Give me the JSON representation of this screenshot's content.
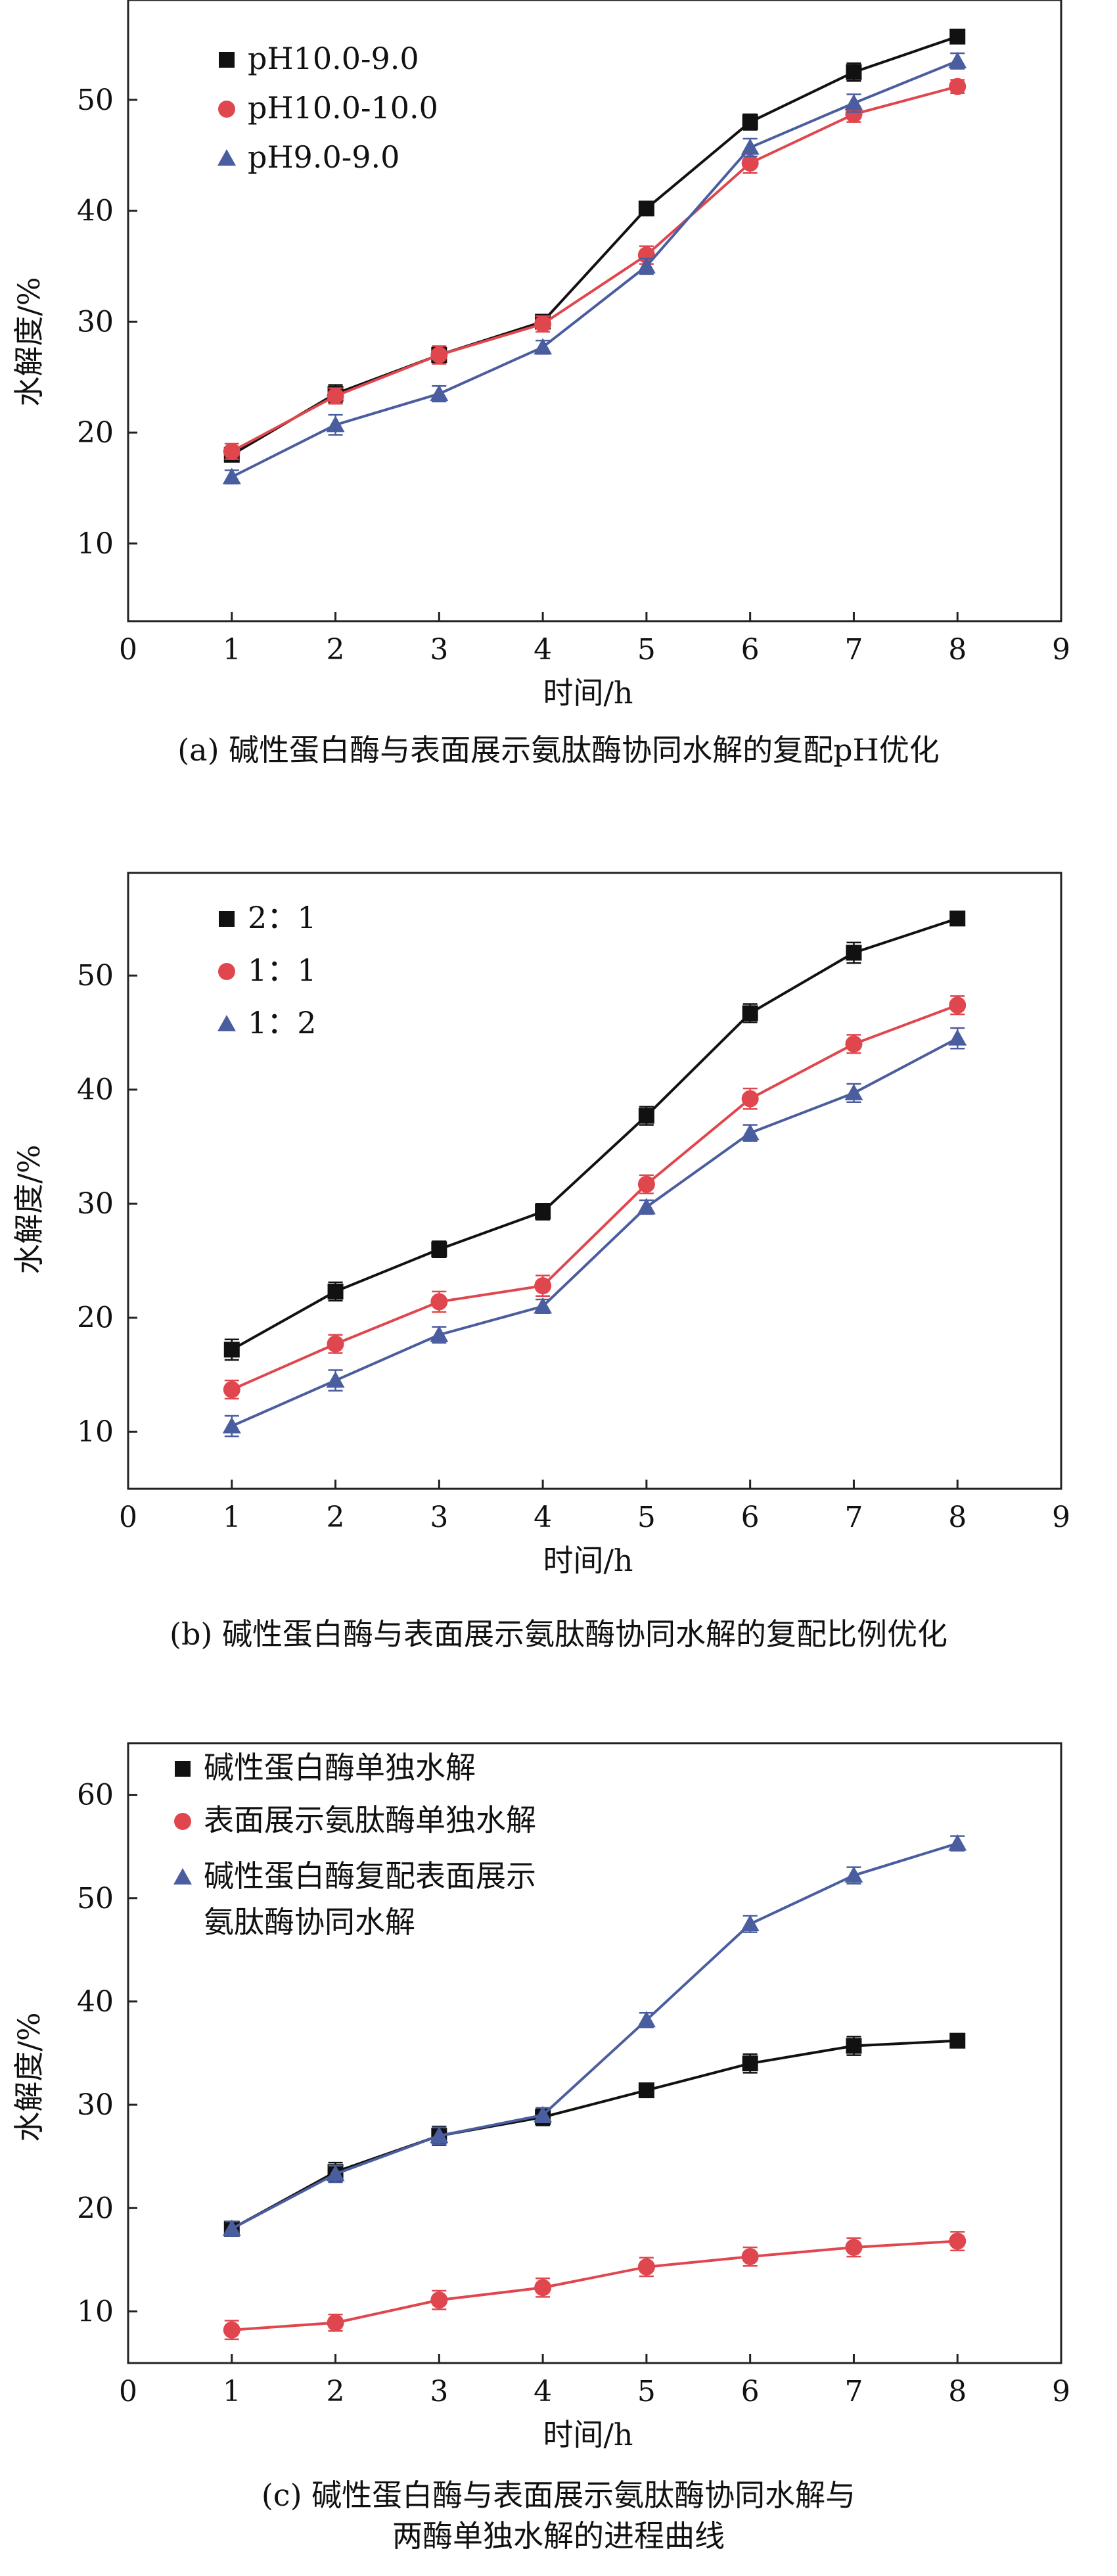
{
  "figure": {
    "colors": {
      "black": "#111111",
      "red": "#e0464d",
      "blue": "#4a5d9e",
      "axis": "#222222"
    }
  },
  "chart_data": [
    {
      "type": "line",
      "xlabel": "时间/h",
      "ylabel": "水解度/%",
      "xlim": [
        0,
        9
      ],
      "ylim": [
        3,
        59
      ],
      "xticks": [
        0,
        1,
        2,
        3,
        4,
        5,
        6,
        7,
        8,
        9
      ],
      "yticks": [
        10,
        20,
        30,
        40,
        50
      ],
      "grid": false,
      "legend_position": "top-left",
      "caption": "(a) 碱性蛋白酶与表面展示氨肽酶协同水解的复配pH优化",
      "x": [
        1,
        2,
        3,
        4,
        5,
        6,
        7,
        8
      ],
      "series": [
        {
          "name": "pH10.0-9.0",
          "marker": "square",
          "color": "#111111",
          "values": [
            18.0,
            23.5,
            27.0,
            30.0,
            40.2,
            48.0,
            52.5,
            55.7
          ],
          "errors": [
            0.6,
            0.8,
            0.7,
            0.6,
            0.6,
            0.7,
            0.8,
            0.6
          ]
        },
        {
          "name": "pH10.0-10.0",
          "marker": "circle",
          "color": "#e0464d",
          "values": [
            18.3,
            23.3,
            27.0,
            29.8,
            36.0,
            44.3,
            48.7,
            51.2
          ],
          "errors": [
            0.7,
            0.7,
            0.8,
            0.7,
            0.8,
            0.9,
            0.7,
            0.6
          ]
        },
        {
          "name": "pH9.0-9.0",
          "marker": "triangle",
          "color": "#4a5d9e",
          "values": [
            16.0,
            20.7,
            23.5,
            27.7,
            35.0,
            45.7,
            49.7,
            53.5
          ],
          "errors": [
            0.6,
            0.9,
            0.7,
            0.6,
            0.7,
            0.8,
            0.8,
            0.7
          ]
        }
      ]
    },
    {
      "type": "line",
      "xlabel": "时间/h",
      "ylabel": "水解度/%",
      "xlim": [
        0,
        9
      ],
      "ylim": [
        5,
        59
      ],
      "xticks": [
        0,
        1,
        2,
        3,
        4,
        5,
        6,
        7,
        8,
        9
      ],
      "yticks": [
        10,
        20,
        30,
        40,
        50
      ],
      "grid": false,
      "legend_position": "top-left",
      "caption": "(b) 碱性蛋白酶与表面展示氨肽酶协同水解的复配比例优化",
      "x": [
        1,
        2,
        3,
        4,
        5,
        6,
        7,
        8
      ],
      "series": [
        {
          "name": "2：1",
          "marker": "square",
          "color": "#111111",
          "values": [
            17.2,
            22.3,
            26.0,
            29.3,
            37.7,
            46.7,
            52.0,
            55.0
          ],
          "errors": [
            0.9,
            0.8,
            0.7,
            0.7,
            0.8,
            0.8,
            0.9,
            0.5
          ]
        },
        {
          "name": "1：1",
          "marker": "circle",
          "color": "#e0464d",
          "values": [
            13.7,
            17.7,
            21.4,
            22.8,
            31.7,
            39.2,
            44.0,
            47.4
          ],
          "errors": [
            0.8,
            0.8,
            0.9,
            0.9,
            0.8,
            0.9,
            0.8,
            0.8
          ]
        },
        {
          "name": "1：2",
          "marker": "triangle",
          "color": "#4a5d9e",
          "values": [
            10.5,
            14.5,
            18.5,
            21.0,
            29.7,
            36.2,
            39.7,
            44.5
          ],
          "errors": [
            0.9,
            0.9,
            0.7,
            0.6,
            0.6,
            0.7,
            0.8,
            0.9
          ]
        }
      ]
    },
    {
      "type": "line",
      "xlabel": "时间/h",
      "ylabel": "水解度/%",
      "xlim": [
        0,
        9
      ],
      "ylim": [
        5,
        65
      ],
      "xticks": [
        0,
        1,
        2,
        3,
        4,
        5,
        6,
        7,
        8,
        9
      ],
      "yticks": [
        10,
        20,
        30,
        40,
        50,
        60
      ],
      "grid": false,
      "legend_position": "top-left",
      "caption": "(c) 碱性蛋白酶与表面展示氨肽酶协同水解与\n两酶单独水解的进程曲线",
      "x": [
        1,
        2,
        3,
        4,
        5,
        6,
        7,
        8
      ],
      "series": [
        {
          "name": "碱性蛋白酶单独水解",
          "marker": "square",
          "color": "#111111",
          "values": [
            18.0,
            23.5,
            27.0,
            28.8,
            31.4,
            34.0,
            35.7,
            36.2
          ],
          "errors": [
            0.7,
            0.9,
            0.9,
            0.8,
            0.6,
            0.9,
            0.9,
            0.6
          ]
        },
        {
          "name": "表面展示氨肽酶单独水解",
          "marker": "circle",
          "color": "#e0464d",
          "values": [
            8.2,
            8.9,
            11.1,
            12.3,
            14.3,
            15.3,
            16.2,
            16.8
          ],
          "errors": [
            0.9,
            0.8,
            0.9,
            0.9,
            0.9,
            0.9,
            0.9,
            0.9
          ]
        },
        {
          "name": "碱性蛋白酶复配表面展示\n氨肽酶协同水解",
          "marker": "triangle",
          "color": "#4a5d9e",
          "values": [
            18.0,
            23.3,
            27.0,
            29.0,
            38.2,
            47.5,
            52.2,
            55.3
          ],
          "errors": [
            0.7,
            0.8,
            0.8,
            0.7,
            0.7,
            0.8,
            0.8,
            0.7
          ]
        }
      ]
    }
  ]
}
